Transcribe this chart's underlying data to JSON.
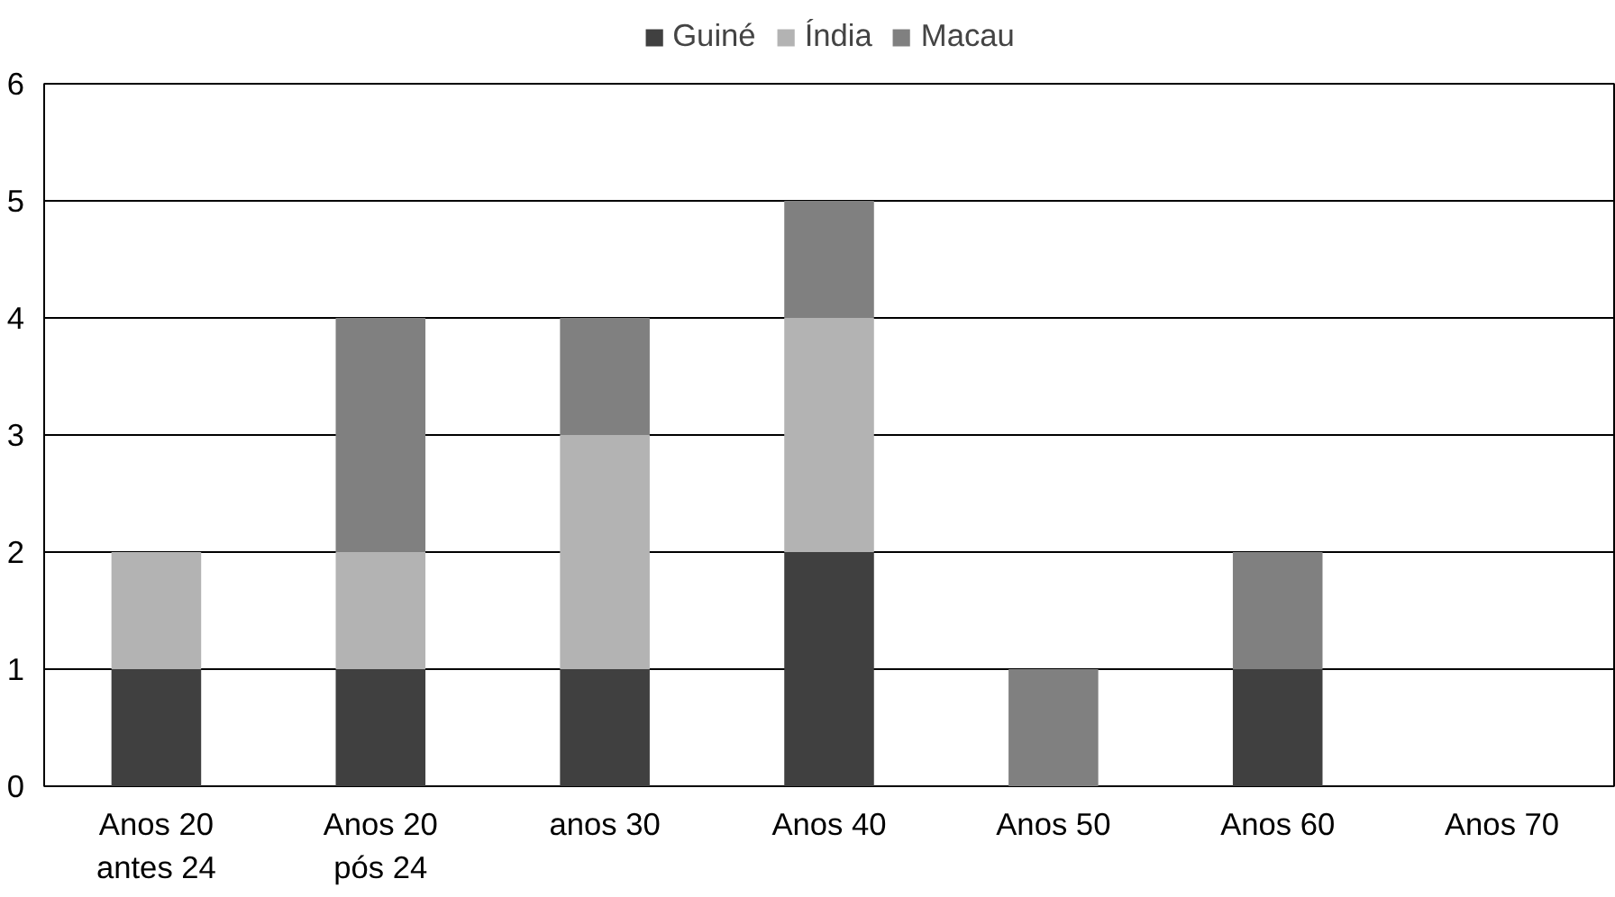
{
  "chart_data": {
    "type": "bar",
    "stacked": true,
    "categories": [
      "Anos 20\nantes 24",
      "Anos 20\npós 24",
      "anos 30",
      "Anos 40",
      "Anos 50",
      "Anos 60",
      "Anos 70"
    ],
    "series": [
      {
        "name": "Guiné",
        "color": "#404040",
        "values": [
          1,
          1,
          1,
          2,
          0,
          1,
          0
        ]
      },
      {
        "name": "Índia",
        "color": "#b3b3b3",
        "values": [
          1,
          1,
          2,
          2,
          0,
          0,
          0
        ]
      },
      {
        "name": "Macau",
        "color": "#808080",
        "values": [
          0,
          2,
          1,
          1,
          1,
          1,
          0
        ]
      }
    ],
    "ylim": [
      0,
      6
    ],
    "yticks": [
      0,
      1,
      2,
      3,
      4,
      5,
      6
    ],
    "grid": "y",
    "legend": "top"
  }
}
